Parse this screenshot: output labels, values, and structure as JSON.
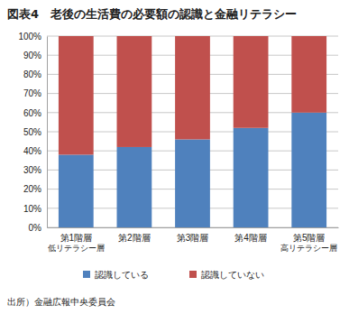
{
  "chart_data": {
    "type": "bar",
    "title": "図表4　老後の生活費の必要額の認識と金融リテラシー",
    "categories": [
      "第1階層\n低リテラシー層",
      "第2階層",
      "第3階層",
      "第4階層",
      "第5階層\n高リテラシー層"
    ],
    "series": [
      {
        "name": "認識している",
        "color": "#4f81bd",
        "values": [
          38,
          42,
          46,
          52,
          60
        ]
      },
      {
        "name": "認識していない",
        "color": "#c0504d",
        "values": [
          62,
          58,
          54,
          48,
          40
        ]
      }
    ],
    "stacked": true,
    "ylim": [
      0,
      100
    ],
    "yticks": [
      {
        "value": 0,
        "label": "0%"
      },
      {
        "value": 10,
        "label": "10%"
      },
      {
        "value": 20,
        "label": "20%"
      },
      {
        "value": 30,
        "label": "30%"
      },
      {
        "value": 40,
        "label": "40%"
      },
      {
        "value": 50,
        "label": "50%"
      },
      {
        "value": 60,
        "label": "60%"
      },
      {
        "value": 70,
        "label": "70%"
      },
      {
        "value": 80,
        "label": "80%"
      },
      {
        "value": 90,
        "label": "90%"
      },
      {
        "value": 100,
        "label": "100%"
      }
    ],
    "grid": true,
    "legend": "bottom",
    "annotations": [
      "出所）金融広報中央委員会"
    ]
  }
}
